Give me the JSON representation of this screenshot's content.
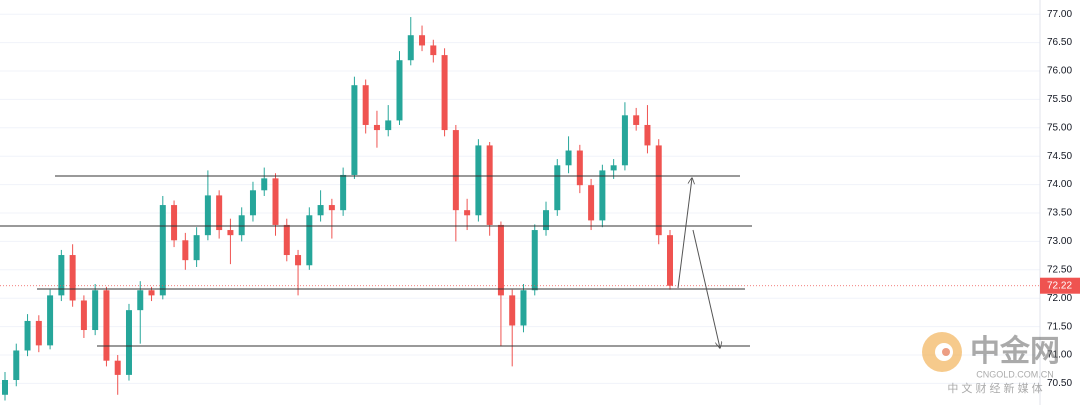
{
  "chart_data": {
    "type": "candlestick",
    "candles": [
      [
        70.3,
        70.7,
        70.2,
        70.56
      ],
      [
        70.56,
        71.2,
        70.45,
        71.08
      ],
      [
        71.08,
        71.72,
        70.98,
        71.6
      ],
      [
        71.6,
        71.7,
        71.05,
        71.17
      ],
      [
        71.17,
        72.15,
        71.1,
        72.05
      ],
      [
        72.05,
        72.85,
        71.95,
        72.76
      ],
      [
        72.76,
        72.95,
        71.85,
        71.96
      ],
      [
        71.96,
        72.05,
        71.3,
        71.44
      ],
      [
        71.44,
        72.25,
        71.35,
        72.14
      ],
      [
        72.14,
        72.2,
        70.8,
        70.9
      ],
      [
        70.9,
        71.0,
        70.3,
        70.65
      ],
      [
        70.65,
        71.9,
        70.55,
        71.79
      ],
      [
        71.79,
        72.3,
        71.2,
        72.14
      ],
      [
        72.14,
        72.2,
        71.95,
        72.05
      ],
      [
        72.05,
        73.8,
        71.98,
        73.64
      ],
      [
        73.64,
        73.72,
        72.9,
        73.02
      ],
      [
        73.02,
        73.15,
        72.5,
        72.67
      ],
      [
        72.67,
        73.25,
        72.55,
        73.11
      ],
      [
        73.11,
        74.25,
        73.02,
        73.81
      ],
      [
        73.81,
        73.9,
        73.05,
        73.2
      ],
      [
        73.2,
        73.4,
        72.6,
        73.11
      ],
      [
        73.11,
        73.6,
        73.0,
        73.46
      ],
      [
        73.46,
        74.05,
        73.35,
        73.9
      ],
      [
        73.9,
        74.3,
        73.8,
        74.11
      ],
      [
        74.11,
        74.2,
        73.1,
        73.29
      ],
      [
        73.29,
        73.4,
        72.65,
        72.76
      ],
      [
        72.76,
        72.85,
        72.05,
        72.58
      ],
      [
        72.58,
        73.6,
        72.5,
        73.46
      ],
      [
        73.46,
        73.9,
        73.35,
        73.64
      ],
      [
        73.64,
        73.75,
        73.05,
        73.55
      ],
      [
        73.55,
        74.3,
        73.45,
        74.17
      ],
      [
        74.17,
        75.9,
        74.1,
        75.75
      ],
      [
        75.75,
        75.85,
        74.9,
        75.05
      ],
      [
        75.05,
        75.3,
        74.65,
        74.96
      ],
      [
        74.96,
        75.4,
        74.85,
        75.13
      ],
      [
        75.13,
        76.35,
        75.05,
        76.19
      ],
      [
        76.19,
        76.95,
        76.1,
        76.63
      ],
      [
        76.63,
        76.8,
        76.35,
        76.45
      ],
      [
        76.45,
        76.55,
        76.15,
        76.28
      ],
      [
        76.28,
        76.4,
        74.85,
        74.96
      ],
      [
        74.96,
        75.05,
        73.0,
        73.55
      ],
      [
        73.55,
        73.75,
        73.2,
        73.46
      ],
      [
        73.46,
        74.8,
        73.35,
        74.69
      ],
      [
        74.69,
        74.75,
        73.1,
        73.29
      ],
      [
        73.29,
        73.35,
        71.15,
        72.05
      ],
      [
        72.05,
        72.15,
        70.8,
        71.52
      ],
      [
        71.52,
        72.25,
        71.4,
        72.14
      ],
      [
        72.14,
        73.3,
        72.05,
        73.2
      ],
      [
        73.2,
        73.7,
        73.1,
        73.55
      ],
      [
        73.55,
        74.45,
        73.45,
        74.34
      ],
      [
        74.34,
        74.85,
        74.2,
        74.6
      ],
      [
        74.6,
        74.7,
        73.85,
        73.99
      ],
      [
        73.99,
        74.1,
        73.2,
        73.37
      ],
      [
        73.37,
        74.35,
        73.25,
        74.25
      ],
      [
        74.25,
        74.45,
        74.1,
        74.34
      ],
      [
        74.34,
        75.45,
        74.25,
        75.22
      ],
      [
        75.22,
        75.35,
        74.95,
        75.05
      ],
      [
        75.05,
        75.4,
        74.55,
        74.69
      ],
      [
        74.69,
        74.8,
        72.95,
        73.11
      ],
      [
        73.11,
        73.2,
        72.15,
        72.22
      ]
    ],
    "up_color": "#26a69a",
    "down_color": "#ef5350",
    "ylim": [
      70.12,
      77.25
    ],
    "yticks": [
      {
        "value": 70.5,
        "label": "70.50"
      },
      {
        "value": 71,
        "label": "71.00"
      },
      {
        "value": 71.5,
        "label": "71.50"
      },
      {
        "value": 72,
        "label": "72.00"
      },
      {
        "value": 72.5,
        "label": "72.50"
      },
      {
        "value": 73,
        "label": "73.00"
      },
      {
        "value": 73.5,
        "label": "73.50"
      },
      {
        "value": 74,
        "label": "74.00"
      },
      {
        "value": 74.5,
        "label": "74.50"
      },
      {
        "value": 75,
        "label": "75.00"
      },
      {
        "value": 75.5,
        "label": "75.50"
      },
      {
        "value": 76,
        "label": "76.00"
      },
      {
        "value": 76.5,
        "label": "76.50"
      },
      {
        "value": 77,
        "label": "77.00"
      }
    ],
    "grid": true
  },
  "watermark": {
    "brand": "中金网",
    "domain": "CNGOLD.COM.CN",
    "slogan": "中 文 财 经 新 媒 体"
  }
}
